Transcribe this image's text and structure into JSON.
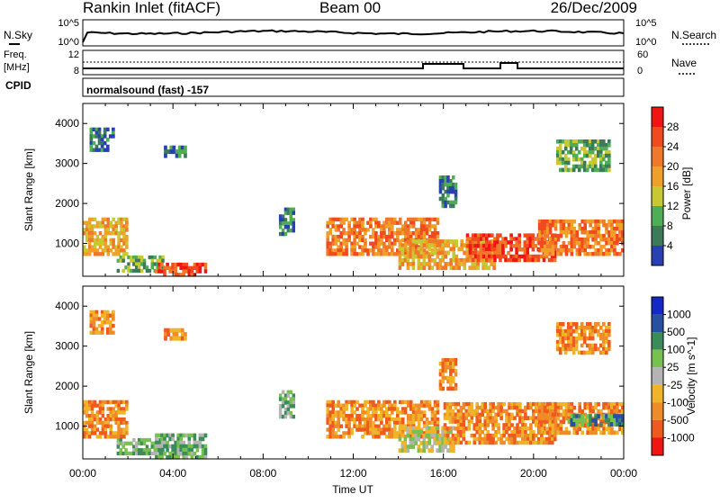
{
  "header": {
    "site_title": "Rankin Inlet (fitACF)",
    "beam": "Beam 00",
    "date": "26/Dec/2009"
  },
  "panels": {
    "nsky_label": "N.Sky",
    "nsearch_label": "N.Search",
    "nave_label": "Nave",
    "freq_label_top": "Freq.",
    "freq_label_unit": "[MHz]",
    "cpid_label": "CPID",
    "cpid_text": "normalsound (fast) -157",
    "noise_left_ticks": [
      "10^5",
      "10^0"
    ],
    "noise_right_ticks": [
      "10^5",
      "10^0"
    ],
    "freq_left_ticks": [
      "12",
      "8"
    ],
    "freq_right_ticks": [
      "60",
      "0"
    ]
  },
  "colors": {
    "power_scale": [
      "#0a1ee6",
      "#2840b4",
      "#3c7a5a",
      "#4fae55",
      "#c8c832",
      "#f0a028",
      "#f07828",
      "#f04a1e",
      "#f01414"
    ],
    "velocity_scale": [
      "#1428c8",
      "#2850a0",
      "#3c8c5a",
      "#78c050",
      "#b4b4b4",
      "#f0b428",
      "#f08c28",
      "#f05a1e",
      "#f01414"
    ]
  },
  "chart_data": [
    {
      "type": "heatmap",
      "name": "power",
      "ylabel": "Slant Range [km]",
      "colorbar_label": "Power [dB]",
      "colorbar_ticks": [
        "4",
        "8",
        "12",
        "16",
        "20",
        "24",
        "28"
      ],
      "ylim": [
        180,
        4500
      ],
      "yticks": [
        "1000",
        "2000",
        "3000",
        "4000"
      ],
      "xlim": [
        0,
        24
      ],
      "xticks": [
        "00:00",
        "04:00",
        "08:00",
        "12:00",
        "16:00",
        "20:00",
        "00:00"
      ],
      "regions": [
        {
          "t0": 0.0,
          "t1": 2.0,
          "r0": 700,
          "r1": 1650,
          "level": 20
        },
        {
          "t0": 1.5,
          "t1": 3.6,
          "r0": 280,
          "r1": 700,
          "level": 12
        },
        {
          "t0": 3.2,
          "t1": 5.5,
          "r0": 180,
          "r1": 520,
          "level": 28
        },
        {
          "t0": 3.6,
          "t1": 4.6,
          "r0": 3150,
          "r1": 3450,
          "level": 8
        },
        {
          "t0": 8.7,
          "t1": 9.4,
          "r0": 1200,
          "r1": 1900,
          "level": 10
        },
        {
          "t0": 10.8,
          "t1": 15.8,
          "r0": 700,
          "r1": 1650,
          "level": 24
        },
        {
          "t0": 14.0,
          "t1": 18.3,
          "r0": 350,
          "r1": 1100,
          "level": 20
        },
        {
          "t0": 17.0,
          "t1": 21.0,
          "r0": 550,
          "r1": 1250,
          "level": 28
        },
        {
          "t0": 20.2,
          "t1": 24.0,
          "r0": 700,
          "r1": 1600,
          "level": 24
        },
        {
          "t0": 21.0,
          "t1": 23.4,
          "r0": 2800,
          "r1": 3600,
          "level": 14
        },
        {
          "t0": 15.8,
          "t1": 16.6,
          "r0": 1900,
          "r1": 2700,
          "level": 8
        },
        {
          "t0": 0.3,
          "t1": 1.4,
          "r0": 3300,
          "r1": 3900,
          "level": 8
        }
      ]
    },
    {
      "type": "heatmap",
      "name": "velocity",
      "ylabel": "Slant Range [km]",
      "colorbar_label": "Velocity [m s^-1]",
      "colorbar_ticks": [
        "1000",
        "500",
        "100",
        "25",
        "-25",
        "-100",
        "-500",
        "-1000"
      ],
      "ylim": [
        180,
        4500
      ],
      "yticks": [
        "1000",
        "2000",
        "3000",
        "4000"
      ],
      "xlim": [
        0,
        24
      ],
      "xticks": [
        "00:00",
        "04:00",
        "08:00",
        "12:00",
        "16:00",
        "20:00",
        "00:00"
      ],
      "xlabel": "Time UT",
      "regions": [
        {
          "t0": 0.0,
          "t1": 2.0,
          "r0": 700,
          "r1": 1650,
          "level": -300
        },
        {
          "t0": 1.5,
          "t1": 3.6,
          "r0": 280,
          "r1": 700,
          "level": 150
        },
        {
          "t0": 3.2,
          "t1": 5.5,
          "r0": 180,
          "r1": 820,
          "level": 120
        },
        {
          "t0": 3.6,
          "t1": 4.6,
          "r0": 3150,
          "r1": 3450,
          "level": -200
        },
        {
          "t0": 8.7,
          "t1": 9.4,
          "r0": 1200,
          "r1": 1900,
          "level": 80
        },
        {
          "t0": 10.8,
          "t1": 15.8,
          "r0": 700,
          "r1": 1650,
          "level": -300
        },
        {
          "t0": 14.0,
          "t1": 16.5,
          "r0": 350,
          "r1": 1000,
          "level": 60
        },
        {
          "t0": 16.0,
          "t1": 21.0,
          "r0": 550,
          "r1": 1600,
          "level": -300
        },
        {
          "t0": 20.2,
          "t1": 24.0,
          "r0": 800,
          "r1": 1600,
          "level": -200
        },
        {
          "t0": 21.5,
          "t1": 24.0,
          "r0": 1000,
          "r1": 1300,
          "level": 400
        },
        {
          "t0": 21.0,
          "t1": 23.4,
          "r0": 2800,
          "r1": 3600,
          "level": -300
        },
        {
          "t0": 15.8,
          "t1": 16.6,
          "r0": 1900,
          "r1": 2700,
          "level": -200
        },
        {
          "t0": 0.3,
          "t1": 1.4,
          "r0": 3300,
          "r1": 3900,
          "level": -150
        }
      ]
    }
  ]
}
